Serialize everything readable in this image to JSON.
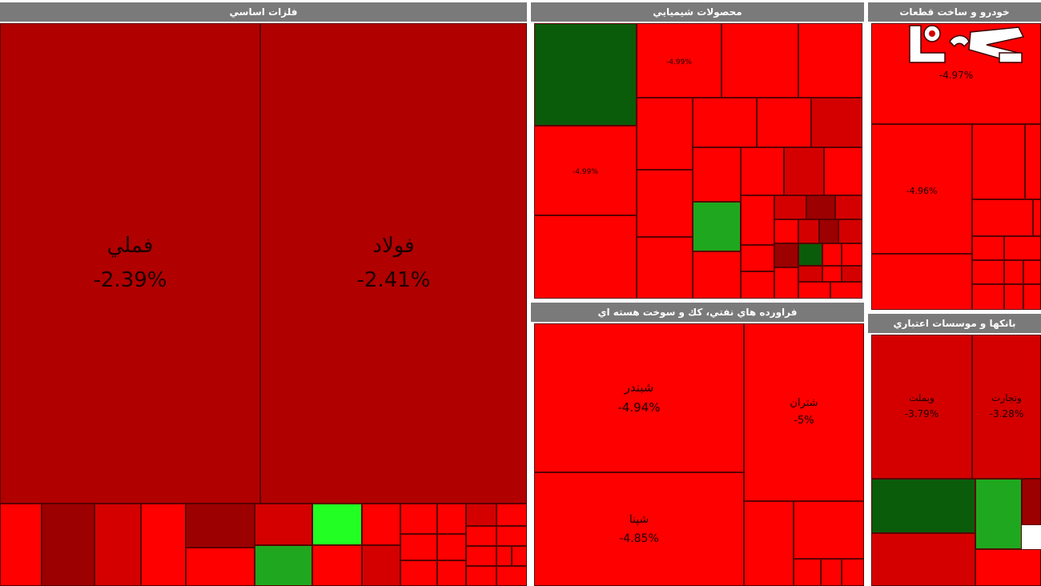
{
  "chart_data": {
    "type": "heatmap",
    "sectors": [
      {
        "name": "فلزات اساسي",
        "tiles": [
          {
            "symbol": "فملي",
            "change": "-2.39%"
          },
          {
            "symbol": "فولاد",
            "change": "-2.41%"
          }
        ]
      },
      {
        "name": "محصولات شيميايي",
        "tiles": [
          {
            "symbol": "",
            "change": "-4.99%"
          },
          {
            "symbol": "",
            "change": "-4.99%"
          }
        ]
      },
      {
        "name": "خودرو و ساخت قطعات",
        "tiles": [
          {
            "symbol": "",
            "change": "-4.97%"
          },
          {
            "symbol": "",
            "change": "-4.96%"
          }
        ]
      },
      {
        "name": "فراورده هاي نفتي، كك و سوخت هسته اي",
        "tiles": [
          {
            "symbol": "شبندر",
            "change": "-4.94%"
          },
          {
            "symbol": "شتران",
            "change": "-5%"
          },
          {
            "symbol": "شپنا",
            "change": "-4.85%"
          }
        ]
      },
      {
        "name": "بانكها و موسسات اعتباري",
        "tiles": [
          {
            "symbol": "وبملت",
            "change": "-3.79%"
          },
          {
            "symbol": "وتجارت",
            "change": "-3.28%"
          }
        ]
      }
    ],
    "colors": {
      "dark_red": "#b10000",
      "red": "#ff0000",
      "mid_red": "#d40000",
      "deep_red": "#9c0000",
      "dark_green": "#0a5c0a",
      "green": "#1fa81f",
      "bright_green": "#22ff22",
      "header_gray": "#7a7a7a"
    }
  }
}
